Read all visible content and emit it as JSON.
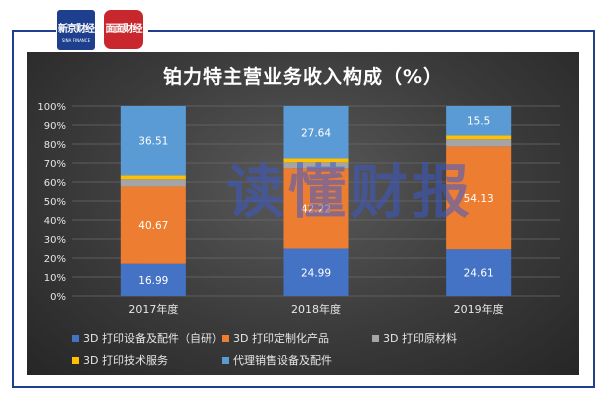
{
  "logos": {
    "left_text": "新京财经",
    "left_sub": "SINA FINANCE",
    "right_text": "面面财经"
  },
  "watermark": "读懂财报",
  "colors": {
    "background": "#3f3f3f",
    "frame": "#1f3f8f"
  },
  "chart_data": {
    "type": "bar",
    "stacked": true,
    "title": "铂力特主营业务收入构成（%）",
    "categories": [
      "2017年度",
      "2018年度",
      "2019年度"
    ],
    "ylim": [
      0,
      100
    ],
    "yticks": [
      "0%",
      "10%",
      "20%",
      "30%",
      "40%",
      "50%",
      "60%",
      "70%",
      "80%",
      "90%",
      "100%"
    ],
    "grid": true,
    "legend_position": "bottom",
    "series": [
      {
        "name": "3D 打印设备及配件（自研）",
        "color": "#4472c4",
        "values": [
          16.99,
          24.99,
          24.61
        ],
        "labels": [
          "16.99",
          "24.99",
          "24.61"
        ]
      },
      {
        "name": "3D 打印定制化产品",
        "color": "#ed7d31",
        "values": [
          40.67,
          42.22,
          54.13
        ],
        "labels": [
          "40.67",
          "42.22",
          "54.13"
        ]
      },
      {
        "name": "3D 打印原材料",
        "color": "#a5a5a5",
        "values": [
          3.83,
          3.15,
          3.76
        ],
        "labels": [
          "",
          "",
          ""
        ]
      },
      {
        "name": "3D 打印技术服务",
        "color": "#ffc000",
        "values": [
          2.0,
          2.0,
          2.0
        ],
        "labels": [
          "",
          "",
          ""
        ]
      },
      {
        "name": "代理销售设备及配件",
        "color": "#5b9bd5",
        "values": [
          36.51,
          27.64,
          15.5
        ],
        "labels": [
          "36.51",
          "27.64",
          "15.5"
        ]
      }
    ]
  }
}
